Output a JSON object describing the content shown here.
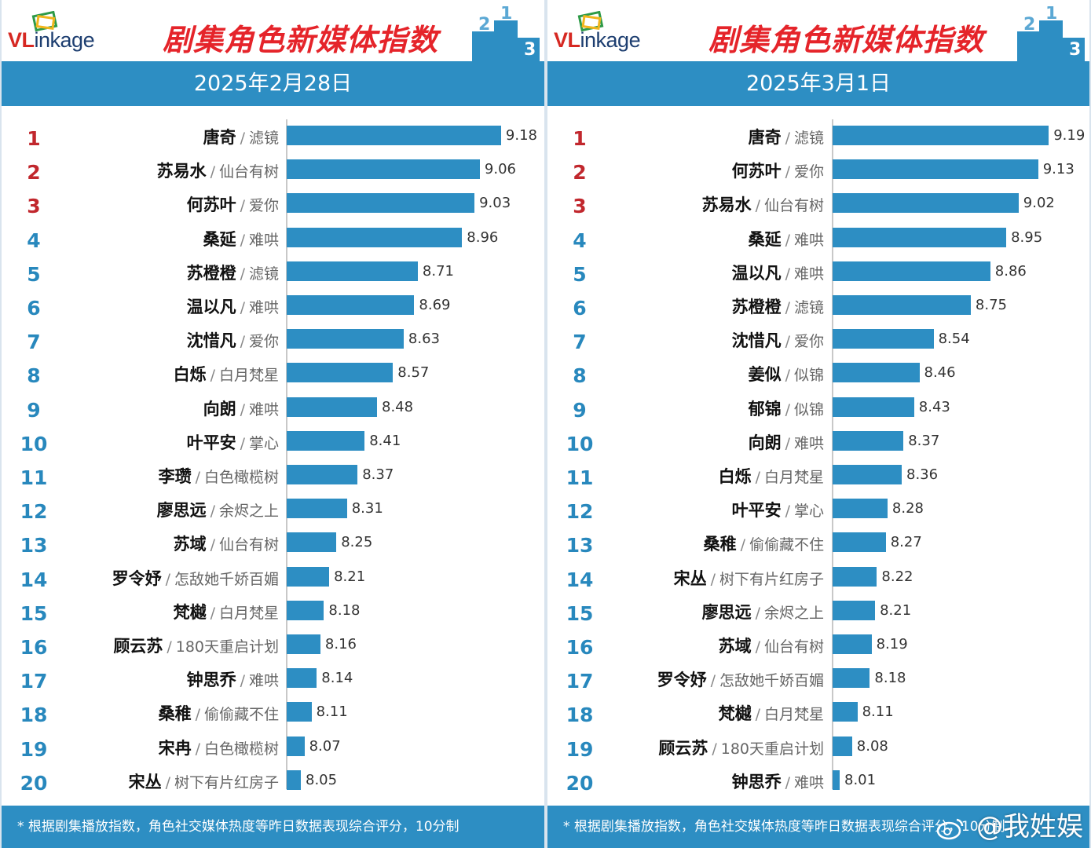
{
  "brand": {
    "logo_prefix": "VL",
    "logo_rest": "inkage"
  },
  "headline": "剧集角色新媒体指数",
  "footnote": "* 根据剧集播放指数，角色社交媒体热度等昨日数据表现综合评分，10分制",
  "watermark": "@我姓娱",
  "colors": {
    "bar": "#2d8ec3",
    "header": "#2d8ec3",
    "rank_top": "#c1272d",
    "rank": "#2888bd",
    "headline": "#e5242a"
  },
  "chart_data": [
    {
      "type": "bar",
      "orientation": "horizontal",
      "title": "剧集角色新媒体指数",
      "date": "2025年2月28日",
      "xlim": [
        7.97,
        9.3
      ],
      "rows": [
        {
          "rank": "1",
          "name": "唐奇",
          "drama": "滤镜",
          "value": 9.18
        },
        {
          "rank": "2",
          "name": "苏易水",
          "drama": "仙台有树",
          "value": 9.06
        },
        {
          "rank": "3",
          "name": "何苏叶",
          "drama": "爱你",
          "value": 9.03
        },
        {
          "rank": "4",
          "name": "桑延",
          "drama": "难哄",
          "value": 8.96
        },
        {
          "rank": "5",
          "name": "苏橙橙",
          "drama": "滤镜",
          "value": 8.71
        },
        {
          "rank": "6",
          "name": "温以凡",
          "drama": "难哄",
          "value": 8.69
        },
        {
          "rank": "7",
          "name": "沈惜凡",
          "drama": "爱你",
          "value": 8.63
        },
        {
          "rank": "8",
          "name": "白烁",
          "drama": "白月梵星",
          "value": 8.57
        },
        {
          "rank": "9",
          "name": "向朗",
          "drama": "难哄",
          "value": 8.48
        },
        {
          "rank": "10",
          "name": "叶平安",
          "drama": "掌心",
          "value": 8.41
        },
        {
          "rank": "11",
          "name": "李瓒",
          "drama": "白色橄榄树",
          "value": 8.37
        },
        {
          "rank": "12",
          "name": "廖思远",
          "drama": "余烬之上",
          "value": 8.31
        },
        {
          "rank": "13",
          "name": "苏域",
          "drama": "仙台有树",
          "value": 8.25
        },
        {
          "rank": "14",
          "name": "罗令妤",
          "drama": "怎敌她千娇百媚",
          "value": 8.21
        },
        {
          "rank": "15",
          "name": "梵樾",
          "drama": "白月梵星",
          "value": 8.18
        },
        {
          "rank": "16",
          "name": "顾云苏",
          "drama": "180天重启计划",
          "value": 8.16
        },
        {
          "rank": "17",
          "name": "钟思乔",
          "drama": "难哄",
          "value": 8.14
        },
        {
          "rank": "18",
          "name": "桑稚",
          "drama": "偷偷藏不住",
          "value": 8.11
        },
        {
          "rank": "19",
          "name": "宋冉",
          "drama": "白色橄榄树",
          "value": 8.07
        },
        {
          "rank": "20",
          "name": "宋丛",
          "drama": "树下有片红房子",
          "value": 8.05
        }
      ]
    },
    {
      "type": "bar",
      "orientation": "horizontal",
      "title": "剧集角色新媒体指数",
      "date": "2025年3月1日",
      "xlim": [
        7.97,
        9.3
      ],
      "rows": [
        {
          "rank": "1",
          "name": "唐奇",
          "drama": "滤镜",
          "value": 9.19
        },
        {
          "rank": "2",
          "name": "何苏叶",
          "drama": "爱你",
          "value": 9.13
        },
        {
          "rank": "3",
          "name": "苏易水",
          "drama": "仙台有树",
          "value": 9.02
        },
        {
          "rank": "4",
          "name": "桑延",
          "drama": "难哄",
          "value": 8.95
        },
        {
          "rank": "5",
          "name": "温以凡",
          "drama": "难哄",
          "value": 8.86
        },
        {
          "rank": "6",
          "name": "苏橙橙",
          "drama": "滤镜",
          "value": 8.75
        },
        {
          "rank": "7",
          "name": "沈惜凡",
          "drama": "爱你",
          "value": 8.54
        },
        {
          "rank": "8",
          "name": "姜似",
          "drama": "似锦",
          "value": 8.46
        },
        {
          "rank": "9",
          "name": "郁锦",
          "drama": "似锦",
          "value": 8.43
        },
        {
          "rank": "10",
          "name": "向朗",
          "drama": "难哄",
          "value": 8.37
        },
        {
          "rank": "11",
          "name": "白烁",
          "drama": "白月梵星",
          "value": 8.36
        },
        {
          "rank": "12",
          "name": "叶平安",
          "drama": "掌心",
          "value": 8.28
        },
        {
          "rank": "13",
          "name": "桑稚",
          "drama": "偷偷藏不住",
          "value": 8.27
        },
        {
          "rank": "14",
          "name": "宋丛",
          "drama": "树下有片红房子",
          "value": 8.22
        },
        {
          "rank": "15",
          "name": "廖思远",
          "drama": "余烬之上",
          "value": 8.21
        },
        {
          "rank": "16",
          "name": "苏域",
          "drama": "仙台有树",
          "value": 8.19
        },
        {
          "rank": "17",
          "name": "罗令妤",
          "drama": "怎敌她千娇百媚",
          "value": 8.18
        },
        {
          "rank": "18",
          "name": "梵樾",
          "drama": "白月梵星",
          "value": 8.11
        },
        {
          "rank": "19",
          "name": "顾云苏",
          "drama": "180天重启计划",
          "value": 8.08
        },
        {
          "rank": "20",
          "name": "钟思乔",
          "drama": "难哄",
          "value": 8.01
        }
      ]
    }
  ]
}
